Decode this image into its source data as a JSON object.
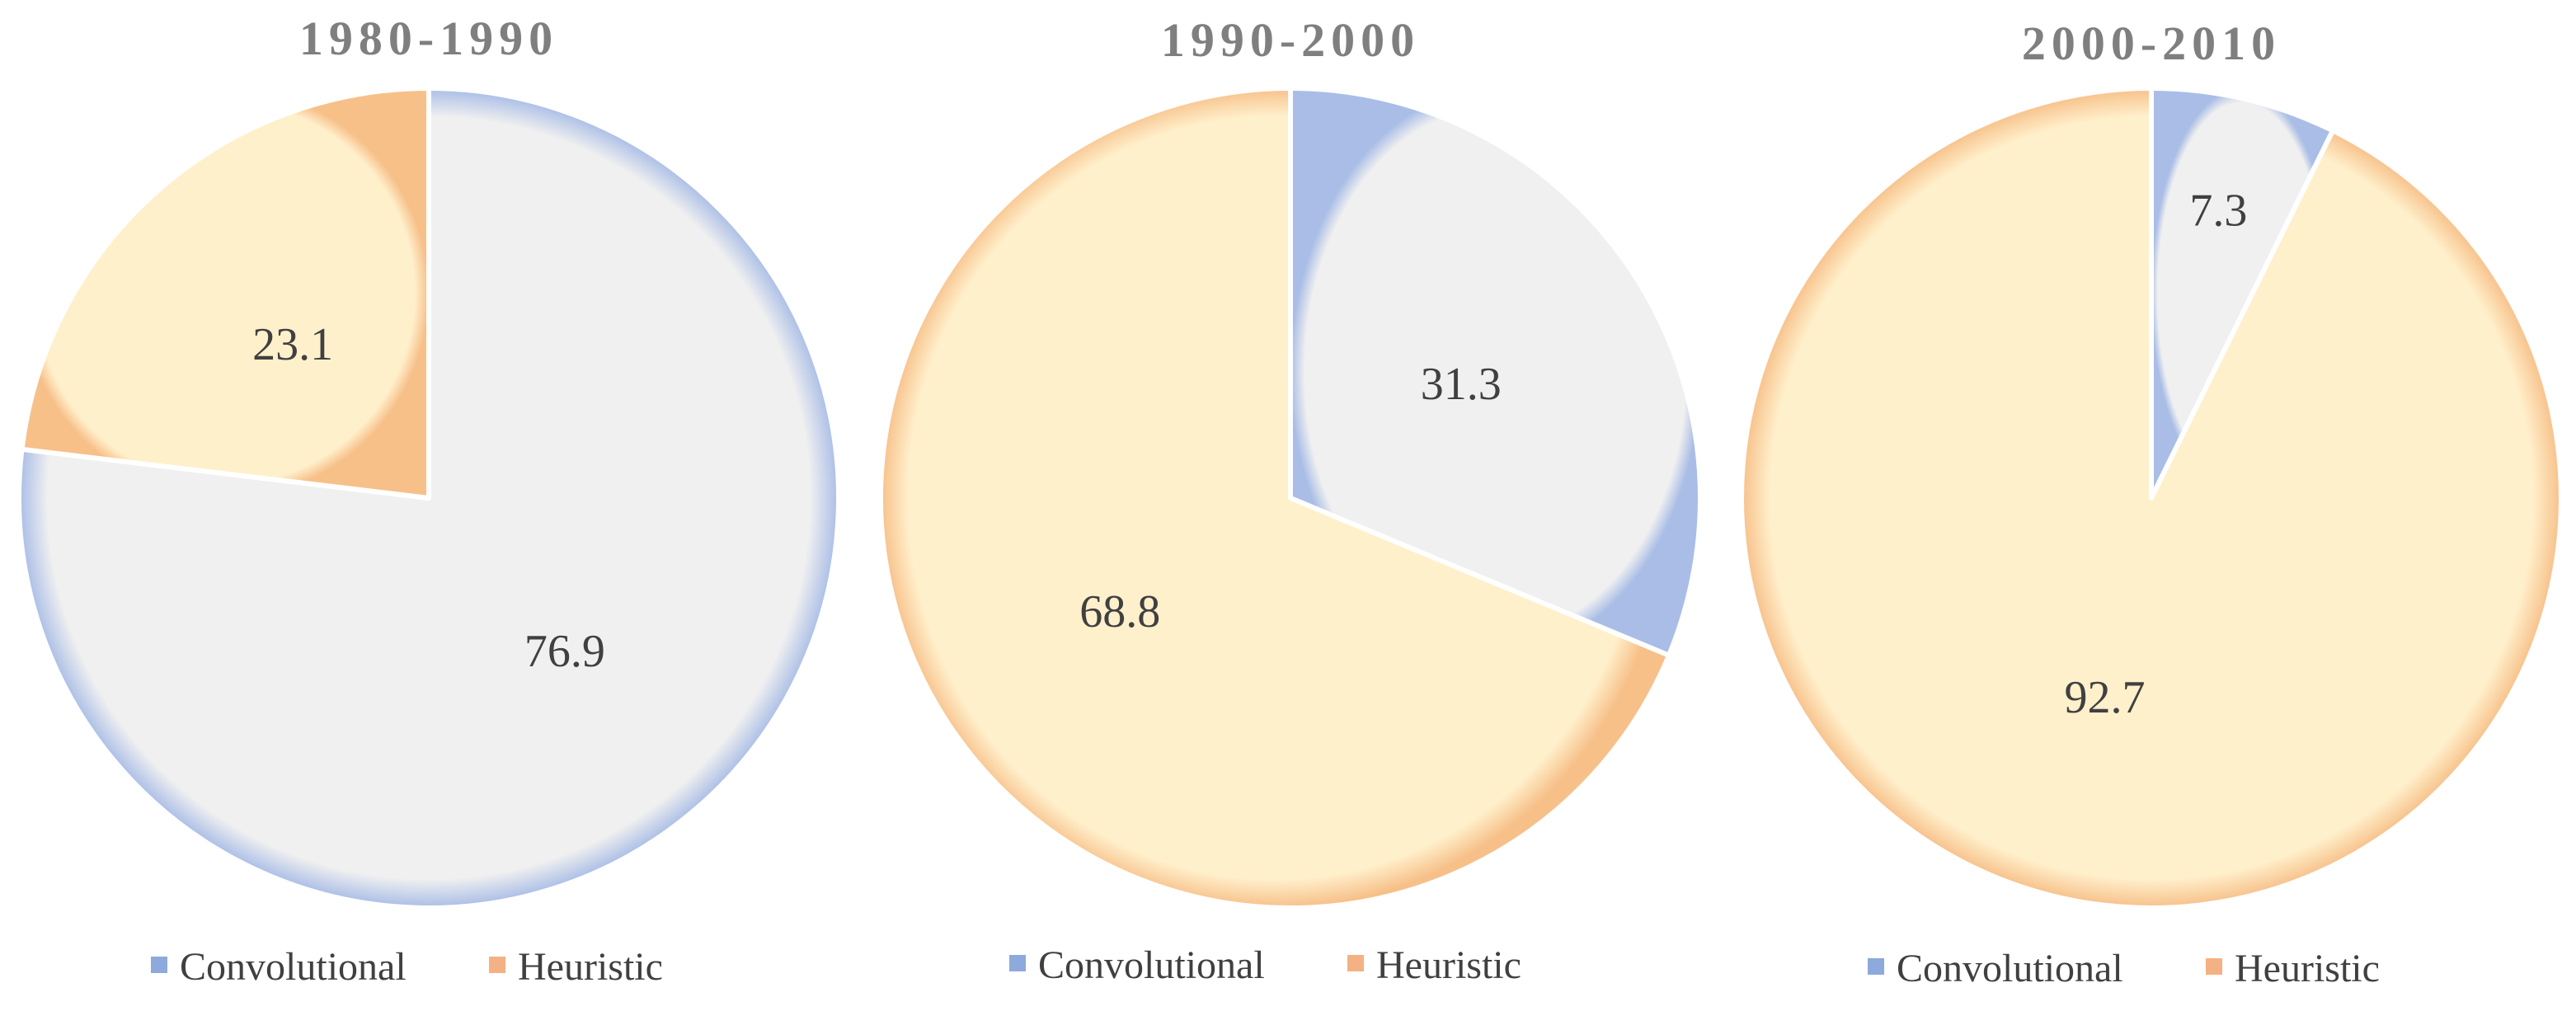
{
  "colors": {
    "convolutional_fill": "#f0f0f0",
    "convolutional_edge": "#a9bde6",
    "convolutional_legend": "#8ea9db",
    "heuristic_fill": "#fff0cc",
    "heuristic_edge": "#f7c089",
    "heuristic_legend": "#f4b183",
    "divider": "#ffffff"
  },
  "chart_data": [
    {
      "type": "pie",
      "title": "1980-1990",
      "categories": [
        "Convolutional",
        "Heuristic"
      ],
      "values": [
        76.9,
        23.1
      ],
      "labels": [
        "76.9",
        "23.1"
      ],
      "legend": [
        "Convolutional",
        "Heuristic"
      ],
      "legend_position": "bottom",
      "start": "top, clockwise"
    },
    {
      "type": "pie",
      "title": "1990-2000",
      "categories": [
        "Convolutional",
        "Heuristic"
      ],
      "values": [
        31.3,
        68.8
      ],
      "labels": [
        "31.3",
        "68.8"
      ],
      "legend": [
        "Convolutional",
        "Heuristic"
      ],
      "legend_position": "bottom",
      "start": "top, clockwise"
    },
    {
      "type": "pie",
      "title": "2000-2010",
      "categories": [
        "Convolutional",
        "Heuristic"
      ],
      "values": [
        7.3,
        92.7
      ],
      "labels": [
        "7.3",
        "92.7"
      ],
      "legend": [
        "Convolutional",
        "Heuristic"
      ],
      "legend_position": "bottom",
      "start": "top, clockwise"
    }
  ]
}
